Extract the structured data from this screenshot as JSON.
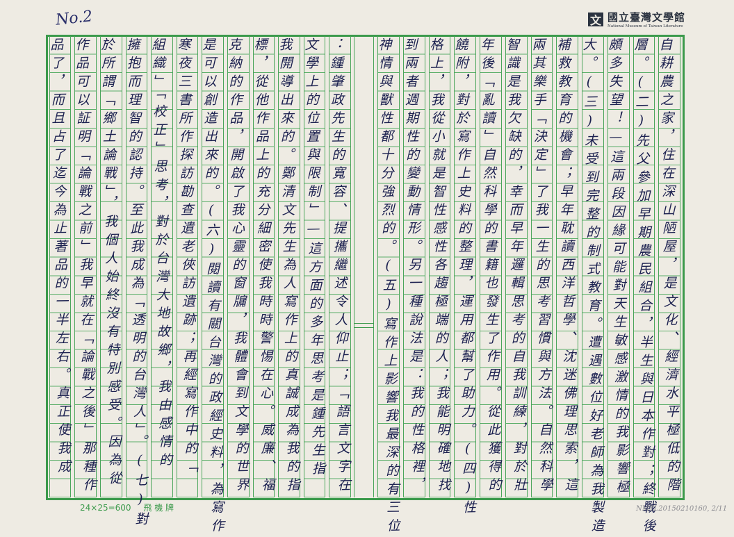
{
  "page": {
    "page_number": "No.2",
    "logo": {
      "name_zh": "國立臺灣文學館",
      "name_en": "National Museum of Taiwan Literature",
      "icon": "wen-logo-icon"
    },
    "footer": {
      "grid_spec": "24×25=600",
      "brand": "飛 機 牌"
    },
    "catalog_id": "NMTL20150210160, 2/11",
    "colors": {
      "paper": "#eeebe3",
      "grid": "#3c9a4c",
      "ink": "#1c2150"
    }
  },
  "manuscript": {
    "columns": [
      "自耕農之家，住在深山陋屋，是文化、經濟水平極低的階",
      "層。(二)先父參加早期農民組合，半生與日本作對；終戰後",
      "頗多失望！—這兩段因緣可能對天生敏感激情的我影響極",
      "大。(三)未受到完整的制式教育。遭遇數位好老師為我製造",
      "補救教育的機會；早年耽讀西洋哲學、沈迷佛理思索，這",
      "兩其樂手「決定」了我一生的思考習慣與方法。自然科學",
      "智識是我欠缺的，幸而早年邏輯思考的自我訓練，對於壯",
      "年後「亂讀」自然科學的書籍也發生了作用。從此獲得的",
      "饒附，對於寫作上史料的整理，運用都幫了助力。(四)性",
      "格上，我從小就是智性感性各趨極端的人；我能明確地找",
      "到兩者週期性的變動情形。另一種說法是：我的性格裡，",
      "神情與獸性都十分強烈的。(五)寫作上影響我最深的有三位",
      "：鍾肇政先生的寬容、提攜繼述令人仰止；「語言文字在",
      "文學上的位置與限制」—這方面的多年思考是鍾先生指",
      "我開導出來的。鄭清文先生為人寫作上的真誠成為我的指",
      "標，從他作品上的充分細密使我時時警惕在心。威廉、福",
      "克納的作品，開啟了我心靈的窗牖，我體會到文學的世界",
      "是可以創造出來的。(六)閱讀有關台灣的政經史料，為寫作",
      "寒夜三書所作探訪勘查遺老俠訪遺跡；再經寫作中的「",
      "組織」「校正」思考，對於台灣大地故鄉，我由感情的",
      "擁抱而理智的認持。至此我成為「透明的台灣人」。(七)對",
      "於所謂「鄉土論戰」，我個人始終沒有特別感受。因為從",
      "作品可以証明「論戰之前」我早就在「論戰之後」那種作",
      "品了，而且占了迄今為止著品的一半左右。真正使我成"
    ]
  }
}
